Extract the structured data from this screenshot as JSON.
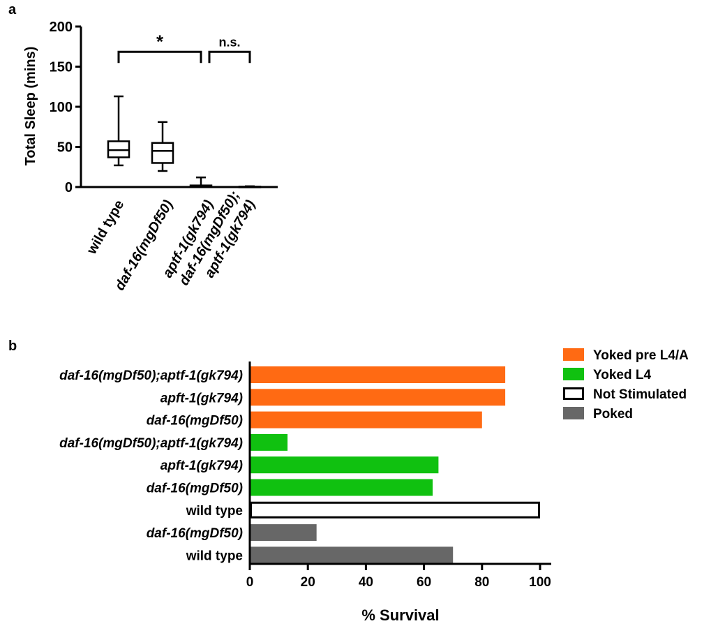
{
  "panel_a": {
    "label": "a",
    "chart_data": {
      "type": "box",
      "ylabel": "Total Sleep (mins)",
      "ylim": [
        0,
        200
      ],
      "yticks": [
        "0",
        "50",
        "100",
        "150",
        "200"
      ],
      "categories": [
        {
          "lines": [
            "wild type"
          ],
          "italic": false
        },
        {
          "lines": [
            "daf-16(mgDf50)"
          ],
          "italic": true
        },
        {
          "lines": [
            "aptf-1(gk794)"
          ],
          "italic": true
        },
        {
          "lines": [
            "daf-16(mgDf50);",
            "aptf-1(gk794)"
          ],
          "italic": true
        }
      ],
      "boxes": [
        {
          "min": 27,
          "q1": 37,
          "median": 46,
          "q3": 57,
          "max": 113
        },
        {
          "min": 20,
          "q1": 30,
          "median": 45,
          "q3": 55,
          "max": 81
        },
        {
          "min": 0,
          "q1": 0,
          "median": 0,
          "q3": 2,
          "max": 12
        },
        {
          "min": 0,
          "q1": 0,
          "median": 0,
          "q3": 0.5,
          "max": 1
        }
      ],
      "significance": [
        {
          "from": 0,
          "to": 2,
          "label": "*",
          "y": 185
        },
        {
          "from": 2,
          "to": 3,
          "label": "n.s.",
          "y": 185
        }
      ]
    }
  },
  "panel_b": {
    "label": "b",
    "chart_data": {
      "type": "bar",
      "orientation": "horizontal",
      "xlabel": "% Survival",
      "xlim": [
        0,
        100
      ],
      "xticks": [
        "0",
        "20",
        "40",
        "60",
        "80",
        "100"
      ],
      "legend_position": "top-right",
      "legend": [
        {
          "name": "Yoked pre L4/A",
          "color": "#ff6a13",
          "outline": false
        },
        {
          "name": "Yoked L4",
          "color": "#10c110",
          "outline": false
        },
        {
          "name": "Not Stimulated",
          "color": "#ffffff",
          "outline": true
        },
        {
          "name": "Poked",
          "color": "#676767",
          "outline": false
        }
      ],
      "bars": [
        {
          "label": "daf-16(mgDf50);aptf-1(gk794)",
          "italic": true,
          "value": 88,
          "group": 0
        },
        {
          "label": "apft-1(gk794)",
          "italic": true,
          "value": 88,
          "group": 0
        },
        {
          "label": "daf-16(mgDf50)",
          "italic": true,
          "value": 80,
          "group": 0
        },
        {
          "label": "daf-16(mgDf50);aptf-1(gk794)",
          "italic": true,
          "value": 13,
          "group": 1
        },
        {
          "label": "apft-1(gk794)",
          "italic": true,
          "value": 65,
          "group": 1
        },
        {
          "label": "daf-16(mgDf50)",
          "italic": true,
          "value": 63,
          "group": 1
        },
        {
          "label": "wild type",
          "italic": false,
          "value": 100,
          "group": 2
        },
        {
          "label": "daf-16(mgDf50)",
          "italic": true,
          "value": 23,
          "group": 3
        },
        {
          "label": "wild type",
          "italic": false,
          "value": 70,
          "group": 3
        }
      ]
    }
  }
}
